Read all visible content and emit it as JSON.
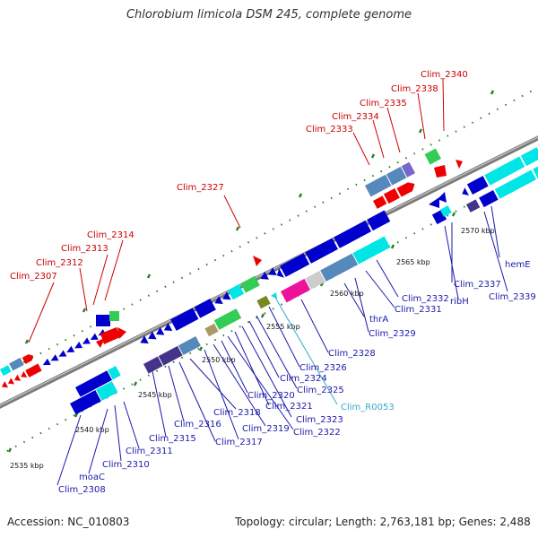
{
  "title": "Chlorobium limicola DSM 245, complete genome",
  "footer": {
    "accession_label": "Accession:",
    "accession": "NC_010803",
    "topology_label": "Topology:",
    "topology": "circular",
    "length_label": "Length:",
    "length": "2,763,181 bp",
    "genes_label": "Genes:",
    "genes": "2,488"
  },
  "colors": {
    "backbone": "#808080",
    "tick": "#2a7f2a",
    "red_label": "#cc0000",
    "blue_label": "#1a1aaa",
    "cyan_label": "#33aacc",
    "gene_blue": "#0000cc",
    "gene_red": "#ee0000",
    "gene_cyan": "#00e5e5",
    "gene_green": "#33cc55",
    "gene_steel": "#5588bb",
    "gene_purple": "#443388",
    "gene_magenta": "#ee1199",
    "gene_olive": "#778822"
  },
  "ticks": [
    "2535 kbp",
    "2540 kbp",
    "2545 kbp",
    "2550 kbp",
    "2555 kbp",
    "2560 kbp",
    "2565 kbp",
    "2570 kbp"
  ],
  "genes_top": [
    "Clim_2307",
    "Clim_2312",
    "Clim_2313",
    "Clim_2314",
    "Clim_2327",
    "Clim_2333",
    "Clim_2334",
    "Clim_2335",
    "Clim_2338",
    "Clim_2340"
  ],
  "genes_bottom": [
    "Clim_2308",
    "moaC",
    "Clim_2310",
    "Clim_2311",
    "Clim_2315",
    "Clim_2316",
    "Clim_2317",
    "Clim_2318",
    "Clim_2319",
    "Clim_2320",
    "Clim_2321",
    "Clim_2322",
    "Clim_2323",
    "Clim_2324",
    "Clim_2325",
    "Clim_2326",
    "Clim_2328",
    "thrA",
    "Clim_2329",
    "Clim_2331",
    "Clim_2332",
    "ribH",
    "Clim_2337",
    "Clim_2339",
    "hemE"
  ],
  "rna_genes": [
    "Clim_R0053"
  ]
}
